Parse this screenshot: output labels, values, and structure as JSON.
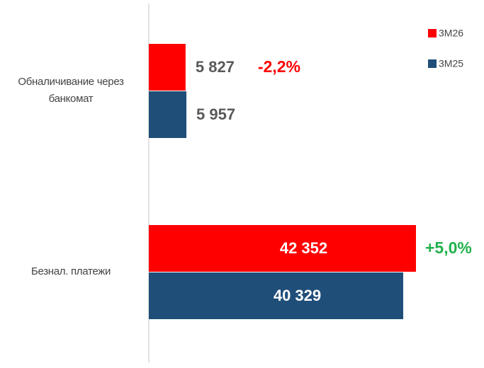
{
  "chart_data": {
    "type": "hbar",
    "categories": [
      "Обналичивание через банкомат",
      "Безнал. платежи"
    ],
    "series": [
      {
        "name": "3M26",
        "color": "#ff0000",
        "values": [
          5827,
          42352
        ],
        "value_labels": [
          "5 827",
          "42 352"
        ]
      },
      {
        "name": "3M25",
        "color": "#1f4e79",
        "values": [
          5957,
          40329
        ],
        "value_labels": [
          "5 957",
          "40 329"
        ]
      }
    ],
    "annotations": [
      {
        "text": "-2,2%",
        "color": "#ff0000"
      },
      {
        "text": "+5,0%",
        "color": "#22b14c"
      }
    ],
    "legend": "top-right"
  }
}
